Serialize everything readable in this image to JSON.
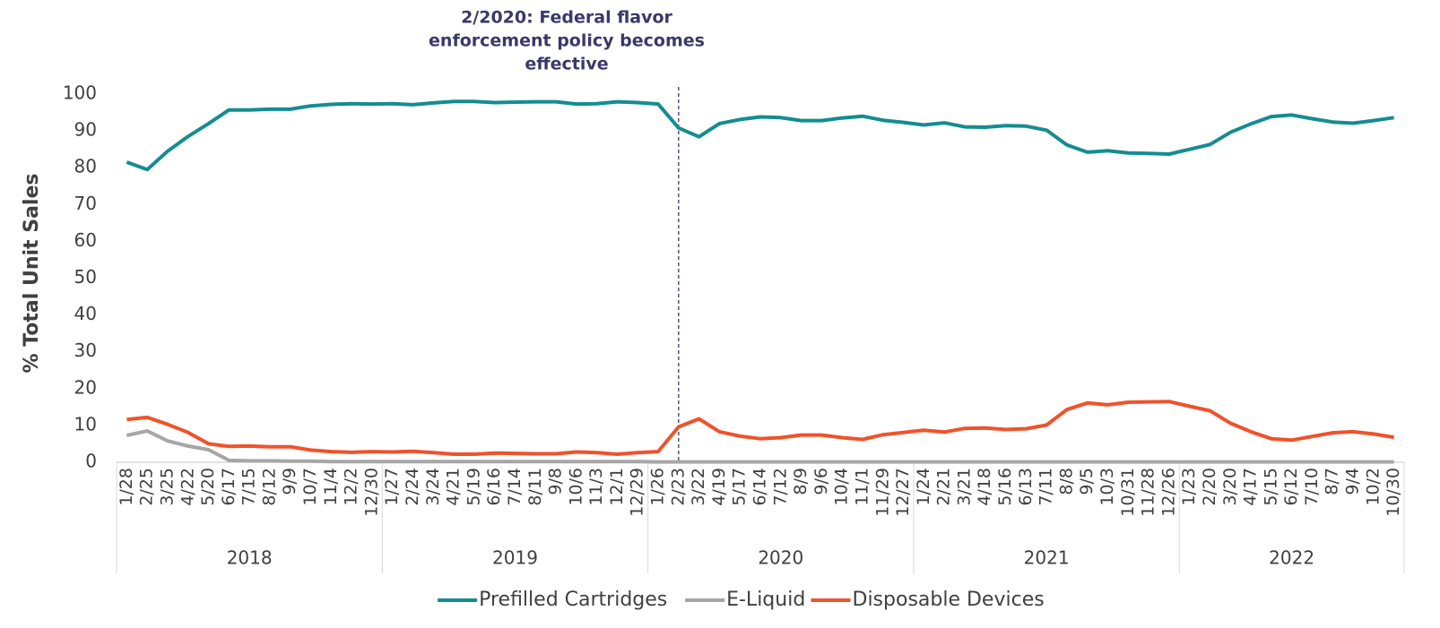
{
  "chart_data": {
    "type": "line",
    "y_label": "% Total Unit Sales",
    "annotation": {
      "lines": [
        "2/2020: Federal flavor",
        "enforcement policy becomes",
        "effective"
      ],
      "category_index": 27,
      "color": "#3b3869"
    },
    "groups": [
      {
        "name": "2018",
        "categories": [
          "1/28",
          "2/25",
          "3/25",
          "4/22",
          "5/20",
          "6/17",
          "7/15",
          "8/12",
          "9/9",
          "10/7",
          "11/4",
          "12/2",
          "12/30"
        ]
      },
      {
        "name": "2019",
        "categories": [
          "1/27",
          "2/24",
          "3/24",
          "4/21",
          "5/19",
          "6/16",
          "7/14",
          "8/11",
          "9/8",
          "10/6",
          "11/3",
          "12/1",
          "12/29"
        ]
      },
      {
        "name": "2020",
        "categories": [
          "1/26",
          "2/23",
          "3/22",
          "4/19",
          "5/17",
          "6/14",
          "7/12",
          "8/9",
          "9/6",
          "10/4",
          "11/1",
          "11/29",
          "12/27"
        ]
      },
      {
        "name": "2021",
        "categories": [
          "1/24",
          "2/21",
          "3/21",
          "4/18",
          "5/16",
          "6/13",
          "7/11",
          "8/8",
          "9/5",
          "10/3",
          "10/31",
          "11/28",
          "12/26"
        ]
      },
      {
        "name": "2022",
        "categories": [
          "1/23",
          "2/20",
          "3/20",
          "4/17",
          "5/15",
          "6/12",
          "7/10",
          "8/7",
          "9/4",
          "10/2",
          "10/30"
        ]
      }
    ],
    "series": [
      {
        "name": "Prefilled Cartridges",
        "color": "#138d90",
        "values": [
          81.5,
          79.5,
          84.5,
          88.5,
          92,
          95.7,
          95.7,
          95.9,
          95.9,
          96.8,
          97.2,
          97.4,
          97.3,
          97.4,
          97.1,
          97.6,
          98,
          98,
          97.7,
          97.8,
          97.9,
          97.9,
          97.3,
          97.4,
          97.9,
          97.7,
          97.3,
          90.8,
          88.4,
          92,
          93.1,
          93.8,
          93.6,
          92.8,
          92.8,
          93.5,
          94,
          92.9,
          92.3,
          91.6,
          92.2,
          91.1,
          91,
          91.4,
          91.3,
          90.2,
          86.2,
          84.2,
          84.6,
          84,
          83.9,
          83.7,
          85,
          86.3,
          89.6,
          91.9,
          93.9,
          94.3,
          93.3,
          92.4,
          92.1,
          92.8,
          93.6
        ]
      },
      {
        "name": "E-Liquid",
        "color": "#a6a6a6",
        "values": [
          7.3,
          8.5,
          5.8,
          4.4,
          3.4,
          0.5,
          0.4,
          0.4,
          0.3,
          0.3,
          0.2,
          0.2,
          0.2,
          0.2,
          0.2,
          0.2,
          0.2,
          0.2,
          0.2,
          0.2,
          0.2,
          0.2,
          0.2,
          0.2,
          0.2,
          0.2,
          0.1,
          0.1,
          0.1,
          0.1,
          0.1,
          0.1,
          0.1,
          0.1,
          0.1,
          0.1,
          0.1,
          0.1,
          0.1,
          0.1,
          0.1,
          0.1,
          0.1,
          0.1,
          0.1,
          0.1,
          0.1,
          0.1,
          0.1,
          0.1,
          0.1,
          0.1,
          0.1,
          0.1,
          0.1,
          0.1,
          0.1,
          0.1,
          0.1,
          0.1,
          0.1,
          0.1,
          0.1
        ]
      },
      {
        "name": "Disposable Devices",
        "color": "#f0522a",
        "values": [
          11.6,
          12.2,
          10.3,
          8.1,
          5,
          4.3,
          4.4,
          4.2,
          4.2,
          3.3,
          2.9,
          2.7,
          2.9,
          2.8,
          3,
          2.6,
          2.2,
          2.2,
          2.5,
          2.4,
          2.3,
          2.3,
          2.8,
          2.6,
          2.2,
          2.6,
          2.9,
          9.6,
          11.8,
          8.3,
          7.1,
          6.4,
          6.7,
          7.4,
          7.4,
          6.7,
          6.2,
          7.5,
          8.1,
          8.7,
          8.2,
          9.2,
          9.3,
          8.9,
          9.1,
          10.1,
          14.3,
          16.1,
          15.6,
          16.3,
          16.4,
          16.5,
          15.2,
          14,
          10.6,
          8.3,
          6.4,
          6,
          7,
          8,
          8.3,
          7.7,
          6.8
        ]
      }
    ],
    "ylim": [
      0,
      100
    ],
    "yticks": [
      0,
      10,
      20,
      30,
      40,
      50,
      60,
      70,
      80,
      90,
      100
    ],
    "legend": "bottom"
  }
}
